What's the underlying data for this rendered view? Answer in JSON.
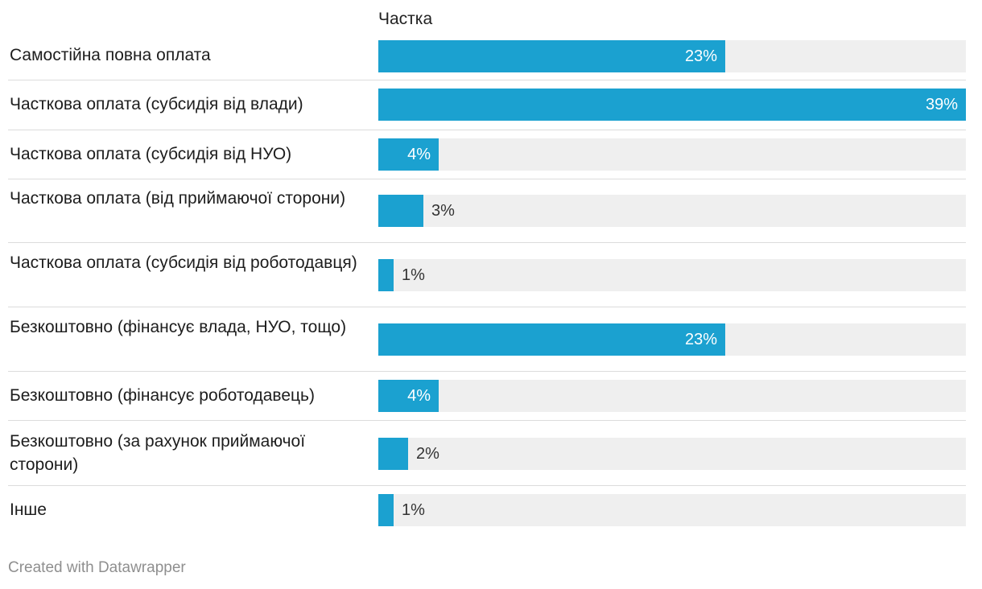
{
  "chart_data": {
    "type": "bar",
    "orientation": "horizontal",
    "column_header": "Частка",
    "max_value": 39,
    "bar_color": "#1ba1d0",
    "track_color": "#efefef",
    "categories": [
      "Самостійна повна оплата",
      "Часткова оплата (субсидія від влади)",
      "Часткова оплата (субсидія від НУО)",
      "Часткова оплата (від приймаючої сторони)",
      "Часткова оплата (субсидія від роботодавця)",
      "Безкоштовно (фінансує влада, НУО, тощо)",
      "Безкоштовно (фінансує роботодавець)",
      "Безкоштовно (за рахунок приймаючої сторони)",
      "Інше"
    ],
    "values": [
      23,
      39,
      4,
      3,
      1,
      23,
      4,
      2,
      1
    ],
    "value_labels": [
      "23%",
      "39%",
      "4%",
      "3%",
      "1%",
      "23%",
      "4%",
      "2%",
      "1%"
    ]
  },
  "footer": "Created with Datawrapper"
}
